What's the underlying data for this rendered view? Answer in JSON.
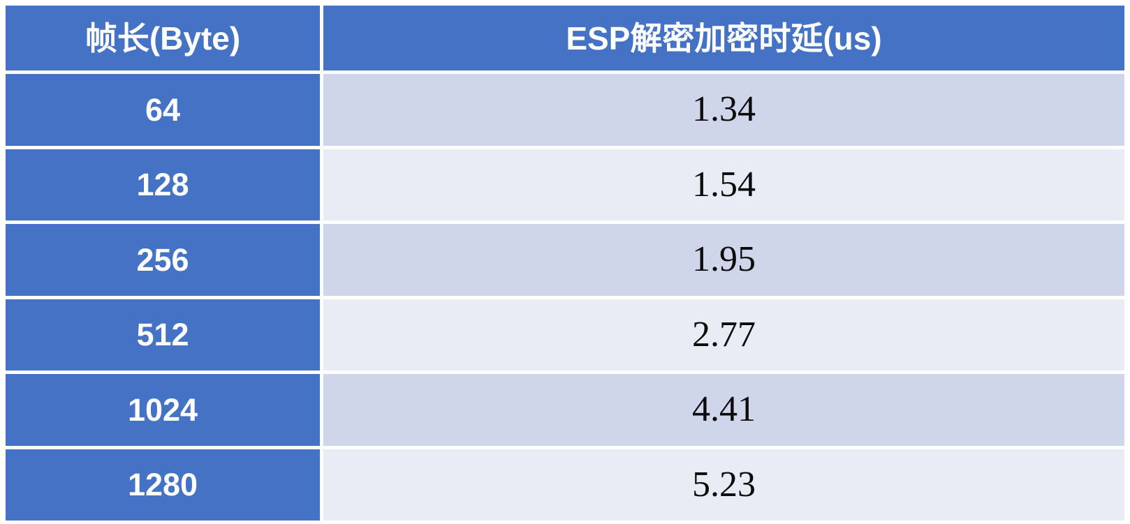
{
  "table": {
    "headers": [
      "帧长(Byte)",
      "ESP解密加密时延(us)"
    ],
    "rows": [
      {
        "frame": "64",
        "latency": "1.34"
      },
      {
        "frame": "128",
        "latency": "1.54"
      },
      {
        "frame": "256",
        "latency": "1.95"
      },
      {
        "frame": "512",
        "latency": "2.77"
      },
      {
        "frame": "1024",
        "latency": "4.41"
      },
      {
        "frame": "1280",
        "latency": "5.23"
      }
    ]
  },
  "colors": {
    "header_blue": "#4472C4",
    "band_dark": "#CFD5EA",
    "band_light": "#E9EBF5",
    "grid_gap": "#FFFFFF",
    "value_text": "#0B0B0B",
    "header_text": "#FFFFFF"
  },
  "chart_data": {
    "type": "table",
    "title": "",
    "columns": [
      "帧长(Byte)",
      "ESP解密加密时延(us)"
    ],
    "rows": [
      [
        64,
        1.34
      ],
      [
        128,
        1.54
      ],
      [
        256,
        1.95
      ],
      [
        512,
        2.77
      ],
      [
        1024,
        4.41
      ],
      [
        1280,
        5.23
      ]
    ],
    "layout_hints": {
      "header_style": "solid blue band, white bold text",
      "body_style": "alternating lavender row banding, first column solid blue",
      "grid": "white 5px gaps between cells"
    }
  }
}
